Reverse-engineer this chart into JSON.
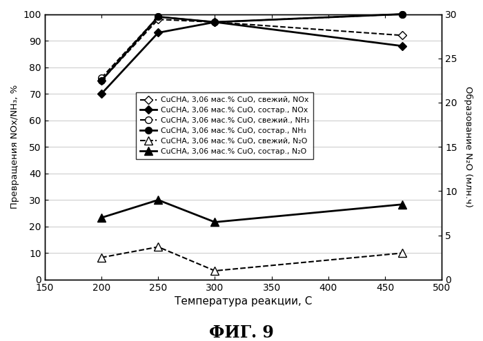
{
  "title": "ФИГ. 9",
  "xlabel": "Температура реакции, С",
  "ylabel_left": "Превращения NOx/NH₃, %",
  "ylabel_right": "Образование N₂O (млн.ч)",
  "xlim": [
    150,
    500
  ],
  "ylim_left": [
    0,
    100
  ],
  "ylim_right": [
    0,
    30
  ],
  "xticks": [
    150,
    200,
    250,
    300,
    350,
    400,
    450,
    500
  ],
  "yticks_left": [
    0,
    10,
    20,
    30,
    40,
    50,
    60,
    70,
    80,
    90,
    100
  ],
  "yticks_right": [
    0,
    5,
    10,
    15,
    20,
    25,
    30
  ],
  "series": [
    {
      "label": "CuCHA, 3,06 мас.% CuO, свежий, NOx",
      "x": [
        200,
        250,
        300,
        465
      ],
      "y": [
        75,
        98,
        97,
        92
      ],
      "color": "black",
      "linestyle": "--",
      "marker": "D",
      "markerfacecolor": "white",
      "markersize": 6,
      "linewidth": 1.5,
      "axis": "left"
    },
    {
      "label": "CuCHA, 3,06 мас.% CuO, состар., NOx",
      "x": [
        200,
        250,
        300,
        465
      ],
      "y": [
        70,
        93,
        97,
        88
      ],
      "color": "black",
      "linestyle": "-",
      "marker": "D",
      "markerfacecolor": "black",
      "markersize": 6,
      "linewidth": 2.0,
      "axis": "left"
    },
    {
      "label": "CuCHA, 3,06 мас.% CuO, свежий., NH₃",
      "x": [
        200,
        250,
        300,
        465
      ],
      "y": [
        76,
        99,
        97,
        100
      ],
      "color": "black",
      "linestyle": "--",
      "marker": "o",
      "markerfacecolor": "white",
      "markersize": 7,
      "linewidth": 1.5,
      "axis": "left"
    },
    {
      "label": "CuCHA, 3,06 мас.% CuO, состар., NH₃",
      "x": [
        200,
        250,
        300,
        465
      ],
      "y": [
        75,
        99,
        97,
        100
      ],
      "color": "black",
      "linestyle": "-",
      "marker": "o",
      "markerfacecolor": "black",
      "markersize": 7,
      "linewidth": 2.0,
      "axis": "left"
    },
    {
      "label": "CuCHA, 3,06 мас.% CuO, свежий, N₂O",
      "x": [
        200,
        250,
        300,
        465
      ],
      "y": [
        2.5,
        3.7,
        1.0,
        3.0
      ],
      "color": "black",
      "linestyle": "--",
      "marker": "^",
      "markerfacecolor": "white",
      "markersize": 8,
      "linewidth": 1.5,
      "axis": "right"
    },
    {
      "label": "CuCHA, 3,06 мас.% CuO, состар., N₂O",
      "x": [
        200,
        250,
        300,
        465
      ],
      "y": [
        7.0,
        9.0,
        6.5,
        8.5
      ],
      "color": "black",
      "linestyle": "-",
      "marker": "^",
      "markerfacecolor": "black",
      "markersize": 8,
      "linewidth": 2.0,
      "axis": "right"
    }
  ]
}
